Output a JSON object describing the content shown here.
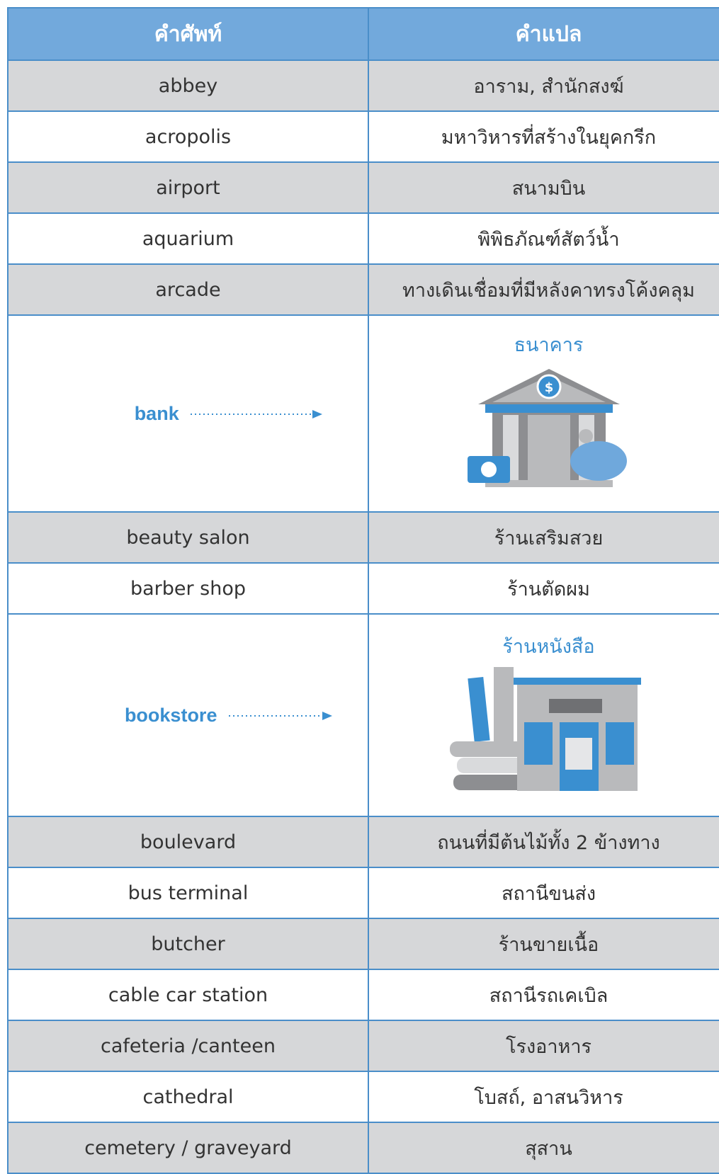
{
  "header": {
    "columns": [
      "คำศัพท์",
      "คำแปล"
    ]
  },
  "rows": [
    {
      "term": "abbey",
      "translation": "อาราม, สำนักสงฆ์"
    },
    {
      "term": "acropolis",
      "translation": "มหาวิหารที่สร้างในยุคกรีก"
    },
    {
      "term": "airport",
      "translation": "สนามบิน"
    },
    {
      "term": "aquarium",
      "translation": "พิพิธภัณฑ์สัตว์น้ำ"
    },
    {
      "term": "arcade",
      "translation": "ทางเดินเชื่อมที่มีหลังคาทรงโค้งคลุม"
    },
    {
      "term": "bank",
      "translation": "ธนาคาร"
    },
    {
      "term": "beauty salon",
      "translation": "ร้านเสริมสวย"
    },
    {
      "term": "barber shop",
      "translation": "ร้านตัดผม"
    },
    {
      "term": "bookstore",
      "translation": "ร้านหนังสือ"
    },
    {
      "term": "boulevard",
      "translation": "ถนนที่มีต้นไม้ทั้ง 2 ข้างทาง"
    },
    {
      "term": "bus terminal",
      "translation": "สถานีขนส่ง"
    },
    {
      "term": "butcher",
      "translation": "ร้านขายเนื้อ"
    },
    {
      "term": "cable car station",
      "translation": "สถานีรถเคเบิล"
    },
    {
      "term": "cafeteria /canteen",
      "translation": "โรงอาหาร"
    },
    {
      "term": "cathedral",
      "translation": "โบสถ์, อาสนวิหาร"
    },
    {
      "term": "cemetery / graveyard",
      "translation": "สุสาน"
    }
  ]
}
